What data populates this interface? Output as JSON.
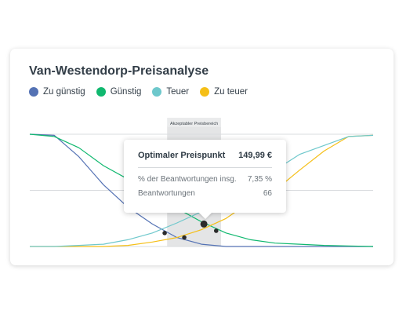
{
  "title": "Van-Westendorp-Preisanalyse",
  "legend": [
    {
      "name": "Zu günstig",
      "color": "#5472b4"
    },
    {
      "name": "Günstig",
      "color": "#10b86f"
    },
    {
      "name": "Teuer",
      "color": "#6ec8cc"
    },
    {
      "name": "Zu teuer",
      "color": "#f5bf17"
    }
  ],
  "range_label": "Akzeptabler Preisbereich",
  "tooltip": {
    "title": "Optimaler Preispunkt",
    "value": "149,99 €",
    "rows": [
      {
        "label": "% der Beantwortungen insg.",
        "value": "7,35 %"
      },
      {
        "label": "Beantwortungen",
        "value": "66"
      }
    ]
  },
  "chart_data": {
    "type": "line",
    "x": [
      0,
      1,
      2,
      3,
      4,
      5,
      6,
      7,
      8,
      9,
      10,
      11,
      12,
      13,
      14
    ],
    "ylim": [
      0,
      100
    ],
    "grid": true,
    "legend_position": "top-left",
    "acceptable_range": [
      5.6,
      7.8
    ],
    "series": [
      {
        "name": "Zu günstig",
        "color": "#5472b4",
        "values": [
          100,
          99,
          80,
          55,
          35,
          20,
          8,
          2,
          0,
          0,
          0,
          0,
          0,
          0,
          0
        ]
      },
      {
        "name": "Günstig",
        "color": "#10b86f",
        "values": [
          100,
          98,
          88,
          72,
          60,
          47,
          34,
          22,
          12,
          6,
          3,
          2,
          1,
          0.5,
          0
        ]
      },
      {
        "name": "Teuer",
        "color": "#6ec8cc",
        "values": [
          0,
          0,
          1,
          2,
          6,
          12,
          21,
          31,
          43,
          55,
          68,
          82,
          90,
          98,
          99
        ]
      },
      {
        "name": "Zu teuer",
        "color": "#f5bf17",
        "values": [
          0,
          0,
          0,
          0,
          1,
          4,
          8,
          15,
          25,
          40,
          50,
          68,
          85,
          98,
          99
        ]
      }
    ],
    "points": [
      {
        "x": 5.5,
        "y": 12
      },
      {
        "x": 6.3,
        "y": 8
      },
      {
        "x": 7.1,
        "y": 20
      },
      {
        "x": 7.6,
        "y": 14
      }
    ]
  }
}
